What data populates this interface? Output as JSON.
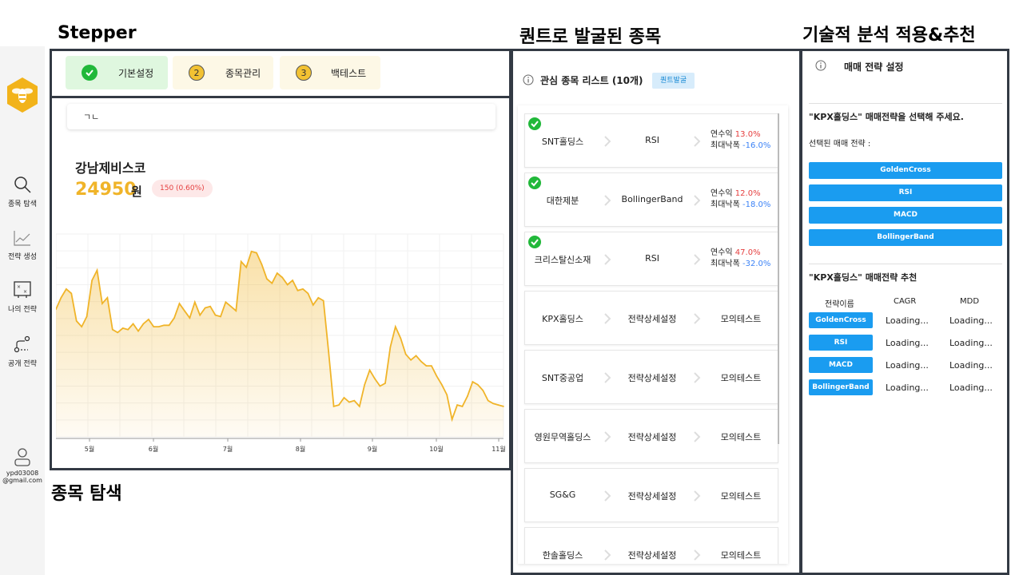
{
  "annotations": {
    "stepper": "Stepper",
    "search": "종목 탐색",
    "quant": "퀀트로 발굴된 종목",
    "analysis": "기술적 분석 적용&추천"
  },
  "sidebar": {
    "items": [
      {
        "label": "종목 탐색",
        "icon": "search-icon"
      },
      {
        "label": "전략 생성",
        "icon": "chart-line-icon"
      },
      {
        "label": "나의 전략",
        "icon": "strategy-board-icon"
      },
      {
        "label": "공개 전략",
        "icon": "route-icon"
      }
    ],
    "user_email_line1": "ypd03008",
    "user_email_line2": "@gmail.com"
  },
  "stepper": {
    "steps": [
      {
        "label": "기본설정",
        "marker": "✓",
        "state": "done"
      },
      {
        "label": "종목관리",
        "marker": "2",
        "state": "pending"
      },
      {
        "label": "백테스트",
        "marker": "3",
        "state": "pending"
      }
    ]
  },
  "search": {
    "input_value": "ㄱㄴ",
    "stock_name": "강남제비스코",
    "price": "24950",
    "unit": "원",
    "change": "150 (0.60%)"
  },
  "chart_data": {
    "type": "area",
    "x_labels": [
      "5월",
      "6월",
      "7월",
      "8월",
      "9월",
      "10월",
      "11월"
    ],
    "values": [
      24800,
      25600,
      26200,
      25900,
      24000,
      23600,
      24300,
      26800,
      27500,
      25200,
      25600,
      23400,
      23200,
      23500,
      23400,
      23800,
      23300,
      23800,
      24100,
      23600,
      23600,
      23700,
      23700,
      24200,
      25200,
      24700,
      24200,
      25300,
      24400,
      24900,
      25000,
      24400,
      24300,
      25300,
      25000,
      24700,
      28100,
      27700,
      28800,
      28700,
      27900,
      26900,
      26600,
      27300,
      27000,
      26500,
      26800,
      26100,
      26200,
      25900,
      25100,
      25600,
      25400,
      21900,
      18100,
      18200,
      18700,
      18400,
      18500,
      18100,
      19600,
      20600,
      20000,
      19500,
      19700,
      22200,
      23600,
      22800,
      21700,
      21300,
      21600,
      21200,
      20900,
      20900,
      20200,
      19600,
      18900,
      17200,
      18200,
      18100,
      18800,
      19800,
      19600,
      19200,
      18500,
      18300,
      18200,
      18100
    ],
    "ylim": [
      16000,
      30000
    ],
    "color": "#f0b429"
  },
  "quant": {
    "title": "관심 종목 리스트 (10개)",
    "badge": "퀀트발굴",
    "return_label": "연수익",
    "mdd_label": "최대낙폭",
    "rows": [
      {
        "name": "SNT홀딩스",
        "strategy": "RSI",
        "checked": true,
        "return": "13.0%",
        "mdd": "-16.0%"
      },
      {
        "name": "대한제분",
        "strategy": "BollingerBand",
        "checked": true,
        "return": "12.0%",
        "mdd": "-18.0%"
      },
      {
        "name": "크리스탈신소재",
        "strategy": "RSI",
        "checked": true,
        "return": "47.0%",
        "mdd": "-32.0%"
      },
      {
        "name": "KPX홀딩스",
        "strategy": "전략상세설정",
        "checked": false,
        "action": "모의테스트"
      },
      {
        "name": "SNT중공업",
        "strategy": "전략상세설정",
        "checked": false,
        "action": "모의테스트"
      },
      {
        "name": "영원무역홀딩스",
        "strategy": "전략상세설정",
        "checked": false,
        "action": "모의테스트"
      },
      {
        "name": "SG&G",
        "strategy": "전략상세설정",
        "checked": false,
        "action": "모의테스트"
      },
      {
        "name": "한솔홀딩스",
        "strategy": "전략상세설정",
        "checked": false,
        "action": "모의테스트"
      }
    ]
  },
  "strategy": {
    "title": "매매 전략 설정",
    "prompt": "\"KPX홀딩스\" 매매전략을 선택해 주세요.",
    "selected_label": "선택된 매매 전략 :",
    "options": [
      "GoldenCross",
      "RSI",
      "MACD",
      "BollingerBand"
    ],
    "rec_title": "\"KPX홀딩스\" 매매전략 추천",
    "columns": [
      "전략이름",
      "CAGR",
      "MDD"
    ],
    "rec_rows": [
      {
        "name": "GoldenCross",
        "cagr": "Loading...",
        "mdd": "Loading..."
      },
      {
        "name": "RSI",
        "cagr": "Loading...",
        "mdd": "Loading..."
      },
      {
        "name": "MACD",
        "cagr": "Loading...",
        "mdd": "Loading..."
      },
      {
        "name": "BollingerBand",
        "cagr": "Loading...",
        "mdd": "Loading..."
      }
    ]
  },
  "colors": {
    "accent": "#f0b429",
    "primary": "#1a9cf0",
    "success": "#21b83a",
    "step_done_bg": "#dff7df",
    "step_pending_bg": "#fdf8e6"
  }
}
